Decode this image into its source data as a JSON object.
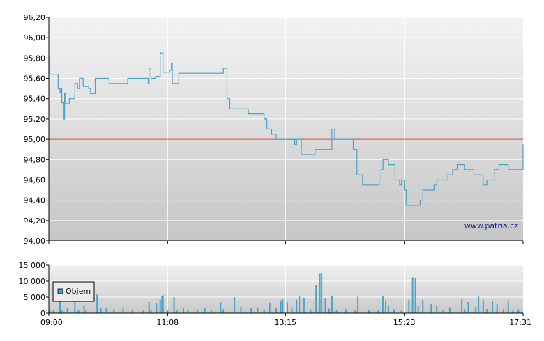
{
  "watermark": "www.patria.cz",
  "chart_data": [
    {
      "type": "line",
      "ylim": [
        94.0,
        96.2
      ],
      "y_ticks": [
        "94.00",
        "94,20",
        "94,40",
        "94,60",
        "94,80",
        "95,00",
        "95,20",
        "95,40",
        "95,60",
        "95,80",
        "96,00",
        "96,20"
      ],
      "x_ticks": [
        "09:00",
        "11:08",
        "13:15",
        "15:23",
        "17:31"
      ],
      "reference_line": {
        "value": 95.0,
        "color": "#e06060"
      },
      "line_color": "#4aa3c8",
      "grid": true,
      "series": [
        {
          "points": [
            [
              "09:00",
              95.82
            ],
            [
              "09:01",
              95.64
            ],
            [
              "09:08",
              95.64
            ],
            [
              "09:10",
              95.5
            ],
            [
              "09:12",
              95.46
            ],
            [
              "09:13",
              95.5
            ],
            [
              "09:14",
              95.36
            ],
            [
              "09:16",
              95.2
            ],
            [
              "09:17",
              95.45
            ],
            [
              "09:18",
              95.35
            ],
            [
              "09:22",
              95.4
            ],
            [
              "09:27",
              95.4
            ],
            [
              "09:28",
              95.55
            ],
            [
              "09:31",
              95.5
            ],
            [
              "09:33",
              95.6
            ],
            [
              "09:37",
              95.52
            ],
            [
              "09:43",
              95.5
            ],
            [
              "09:45",
              95.45
            ],
            [
              "09:50",
              95.6
            ],
            [
              "10:05",
              95.55
            ],
            [
              "10:25",
              95.6
            ],
            [
              "10:47",
              95.55
            ],
            [
              "10:48",
              95.7
            ],
            [
              "10:50",
              95.6
            ],
            [
              "10:55",
              95.62
            ],
            [
              "11:00",
              95.85
            ],
            [
              "11:03",
              95.66
            ],
            [
              "11:10",
              95.68
            ],
            [
              "11:12",
              95.75
            ],
            [
              "11:13",
              95.55
            ],
            [
              "11:20",
              95.65
            ],
            [
              "11:53",
              95.65
            ],
            [
              "12:08",
              95.7
            ],
            [
              "12:12",
              95.4
            ],
            [
              "12:15",
              95.3
            ],
            [
              "12:35",
              95.25
            ],
            [
              "12:52",
              95.2
            ],
            [
              "12:55",
              95.1
            ],
            [
              "13:00",
              95.05
            ],
            [
              "13:05",
              95.0
            ],
            [
              "13:15",
              95.0
            ],
            [
              "13:25",
              94.95
            ],
            [
              "13:27",
              95.0
            ],
            [
              "13:32",
              94.85
            ],
            [
              "13:47",
              94.9
            ],
            [
              "14:05",
              95.1
            ],
            [
              "14:08",
              95.0
            ],
            [
              "14:28",
              94.9
            ],
            [
              "14:32",
              94.65
            ],
            [
              "14:38",
              94.55
            ],
            [
              "14:56",
              94.6
            ],
            [
              "14:58",
              94.7
            ],
            [
              "15:00",
              94.8
            ],
            [
              "15:06",
              94.75
            ],
            [
              "15:13",
              94.6
            ],
            [
              "15:18",
              94.55
            ],
            [
              "15:20",
              94.6
            ],
            [
              "15:23",
              94.5
            ],
            [
              "15:25",
              94.35
            ],
            [
              "15:40",
              94.4
            ],
            [
              "15:43",
              94.5
            ],
            [
              "15:55",
              94.55
            ],
            [
              "15:58",
              94.6
            ],
            [
              "16:10",
              94.65
            ],
            [
              "16:15",
              94.7
            ],
            [
              "16:20",
              94.75
            ],
            [
              "16:28",
              94.7
            ],
            [
              "16:38",
              94.65
            ],
            [
              "16:48",
              94.55
            ],
            [
              "16:52",
              94.6
            ],
            [
              "17:00",
              94.7
            ],
            [
              "17:05",
              94.75
            ],
            [
              "17:15",
              94.7
            ],
            [
              "17:30",
              94.7
            ],
            [
              "17:31",
              94.95
            ]
          ]
        }
      ]
    },
    {
      "type": "bar",
      "ylim": [
        0,
        15000
      ],
      "y_ticks": [
        "0",
        "5 000",
        "10 000",
        "15 000"
      ],
      "x_ticks": [
        "09:00",
        "11:08",
        "13:15",
        "15:23",
        "17:31"
      ],
      "legend": {
        "position": "left",
        "entries": [
          "Objem"
        ]
      },
      "bar_color": "#4aa3c8",
      "grid": true,
      "series": [
        {
          "name": "Objem",
          "points": [
            [
              "09:01",
              1200
            ],
            [
              "09:05",
              900
            ],
            [
              "09:12",
              6200
            ],
            [
              "09:14",
              800
            ],
            [
              "09:20",
              1500
            ],
            [
              "09:28",
              4800
            ],
            [
              "09:32",
              1100
            ],
            [
              "09:38",
              2500
            ],
            [
              "09:40",
              900
            ],
            [
              "09:52",
              5800
            ],
            [
              "09:56",
              1800
            ],
            [
              "10:02",
              1700
            ],
            [
              "10:10",
              1200
            ],
            [
              "10:20",
              1500
            ],
            [
              "10:30",
              1000
            ],
            [
              "10:42",
              800
            ],
            [
              "10:48",
              3500
            ],
            [
              "10:50",
              900
            ],
            [
              "10:56",
              3000
            ],
            [
              "11:00",
              4200
            ],
            [
              "11:02",
              5400
            ],
            [
              "11:03",
              5600
            ],
            [
              "11:08",
              900
            ],
            [
              "11:15",
              5000
            ],
            [
              "11:18",
              800
            ],
            [
              "11:25",
              1500
            ],
            [
              "11:30",
              1000
            ],
            [
              "11:40",
              1200
            ],
            [
              "11:48",
              1700
            ],
            [
              "11:55",
              1000
            ],
            [
              "12:05",
              3400
            ],
            [
              "12:08",
              1200
            ],
            [
              "12:20",
              5000
            ],
            [
              "12:27",
              2000
            ],
            [
              "12:38",
              1500
            ],
            [
              "12:45",
              1800
            ],
            [
              "12:52",
              1200
            ],
            [
              "12:58",
              3300
            ],
            [
              "13:05",
              1500
            ],
            [
              "13:10",
              4000
            ],
            [
              "13:12",
              4500
            ],
            [
              "13:17",
              3400
            ],
            [
              "13:22",
              1800
            ],
            [
              "13:27",
              4200
            ],
            [
              "13:30",
              5200
            ],
            [
              "13:35",
              4800
            ],
            [
              "13:42",
              1200
            ],
            [
              "13:48",
              8800
            ],
            [
              "13:52",
              12300
            ],
            [
              "13:54",
              12400
            ],
            [
              "13:58",
              4800
            ],
            [
              "14:02",
              1400
            ],
            [
              "14:05",
              5400
            ],
            [
              "14:10",
              1000
            ],
            [
              "14:20",
              1200
            ],
            [
              "14:30",
              800
            ],
            [
              "14:33",
              5200
            ],
            [
              "14:45",
              900
            ],
            [
              "14:55",
              1000
            ],
            [
              "15:00",
              5200
            ],
            [
              "15:03",
              4000
            ],
            [
              "15:06",
              2500
            ],
            [
              "15:12",
              1200
            ],
            [
              "15:20",
              800
            ],
            [
              "15:28",
              4200
            ],
            [
              "15:32",
              11200
            ],
            [
              "15:35",
              11000
            ],
            [
              "15:38",
              2200
            ],
            [
              "15:43",
              4200
            ],
            [
              "15:52",
              2800
            ],
            [
              "15:58",
              2400
            ],
            [
              "16:05",
              1000
            ],
            [
              "16:12",
              1800
            ],
            [
              "16:25",
              4300
            ],
            [
              "16:28",
              1200
            ],
            [
              "16:32",
              3500
            ],
            [
              "16:40",
              2000
            ],
            [
              "16:43",
              5400
            ],
            [
              "16:48",
              4200
            ],
            [
              "16:52",
              1300
            ],
            [
              "16:58",
              3800
            ],
            [
              "17:03",
              2800
            ],
            [
              "17:10",
              1300
            ],
            [
              "17:15",
              4000
            ],
            [
              "17:20",
              1100
            ],
            [
              "17:26",
              1200
            ],
            [
              "17:30",
              500
            ]
          ]
        }
      ]
    }
  ]
}
